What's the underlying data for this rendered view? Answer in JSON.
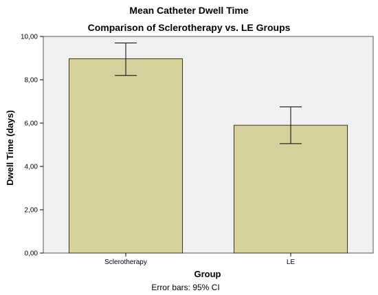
{
  "chart_data": {
    "type": "bar",
    "title": "Mean Catheter Dwell Time",
    "subtitle": "Comparison of Sclerotherapy vs. LE Groups",
    "xlabel": "Group",
    "ylabel": "Dwell Time (days)",
    "categories": [
      "Sclerotherapy",
      "LE"
    ],
    "values": [
      8.97,
      5.9
    ],
    "error_bars": {
      "label": "Error bars: 95% CI",
      "lower": [
        8.2,
        5.05
      ],
      "upper": [
        9.7,
        6.75
      ]
    },
    "ylim": [
      0,
      10
    ],
    "yticks": [
      0,
      2,
      4,
      6,
      8,
      10
    ],
    "ytick_labels": [
      "0,00",
      "2,00",
      "4,00",
      "6,00",
      "8,00",
      "10,00"
    ],
    "grid": false,
    "legend": "none",
    "colors": {
      "bar_fill": "#d8d09a",
      "bar_stroke": "#3a3520",
      "plot_background": "#f0f0f0",
      "error_bar": "#000000"
    }
  }
}
